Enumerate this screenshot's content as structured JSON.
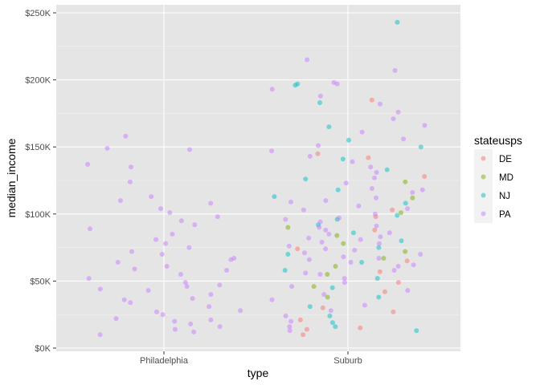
{
  "chart_data": {
    "type": "scatter",
    "jitter": true,
    "xlabel": "type",
    "ylabel": "median_income",
    "categories": [
      "Philadelphia",
      "Suburb"
    ],
    "ylim": [
      0,
      250000
    ],
    "yticks": [
      0,
      50000,
      100000,
      150000,
      200000,
      250000
    ],
    "ytick_labels": [
      "$0K",
      "$50K",
      "$100K",
      "$150K",
      "$200K",
      "$250K"
    ],
    "grid": true,
    "panel_background": "#e5e5e5",
    "grid_color": "#ffffff",
    "point_opacity": 0.5,
    "legend": {
      "title": "stateusps",
      "placement": "right",
      "entries": [
        {
          "label": "DE",
          "color": "#F8766D"
        },
        {
          "label": "MD",
          "color": "#7CAE00"
        },
        {
          "label": "NJ",
          "color": "#00BFC4"
        },
        {
          "label": "PA",
          "color": "#C77CFF"
        }
      ]
    },
    "series": [
      {
        "name": "DE",
        "color": "#F8766D",
        "points": [
          {
            "x": "Suburb",
            "y": 185000
          },
          {
            "x": "Suburb",
            "y": 145000
          },
          {
            "x": "Suburb",
            "y": 142000
          },
          {
            "x": "Suburb",
            "y": 128000
          },
          {
            "x": "Suburb",
            "y": 98000
          },
          {
            "x": "Suburb",
            "y": 88000
          },
          {
            "x": "Suburb",
            "y": 74000
          },
          {
            "x": "Suburb",
            "y": 65000
          },
          {
            "x": "Suburb",
            "y": 57000
          },
          {
            "x": "Suburb",
            "y": 49000
          },
          {
            "x": "Suburb",
            "y": 42000
          },
          {
            "x": "Suburb",
            "y": 30000
          },
          {
            "x": "Suburb",
            "y": 27000
          },
          {
            "x": "Suburb",
            "y": 21000
          },
          {
            "x": "Suburb",
            "y": 15000
          },
          {
            "x": "Suburb",
            "y": 14000
          },
          {
            "x": "Suburb",
            "y": 10000
          },
          {
            "x": "Suburb",
            "y": 103000
          }
        ]
      },
      {
        "name": "MD",
        "color": "#7CAE00",
        "points": [
          {
            "x": "Suburb",
            "y": 124000
          },
          {
            "x": "Suburb",
            "y": 101000
          },
          {
            "x": "Suburb",
            "y": 90000
          },
          {
            "x": "Suburb",
            "y": 78000
          },
          {
            "x": "Suburb",
            "y": 67000
          },
          {
            "x": "Suburb",
            "y": 55000
          },
          {
            "x": "Suburb",
            "y": 46000
          },
          {
            "x": "Suburb",
            "y": 38000
          },
          {
            "x": "Suburb",
            "y": 112000
          },
          {
            "x": "Suburb",
            "y": 72000
          },
          {
            "x": "Suburb",
            "y": 61000
          },
          {
            "x": "Suburb",
            "y": 84000
          }
        ]
      },
      {
        "name": "NJ",
        "color": "#00BFC4",
        "points": [
          {
            "x": "Suburb",
            "y": 243000
          },
          {
            "x": "Suburb",
            "y": 197000
          },
          {
            "x": "Suburb",
            "y": 196000
          },
          {
            "x": "Suburb",
            "y": 183000
          },
          {
            "x": "Suburb",
            "y": 165000
          },
          {
            "x": "Suburb",
            "y": 155000
          },
          {
            "x": "Suburb",
            "y": 150000
          },
          {
            "x": "Suburb",
            "y": 141000
          },
          {
            "x": "Suburb",
            "y": 133000
          },
          {
            "x": "Suburb",
            "y": 126000
          },
          {
            "x": "Suburb",
            "y": 118000
          },
          {
            "x": "Suburb",
            "y": 108000
          },
          {
            "x": "Suburb",
            "y": 99000
          },
          {
            "x": "Suburb",
            "y": 92000
          },
          {
            "x": "Suburb",
            "y": 86000
          },
          {
            "x": "Suburb",
            "y": 80000
          },
          {
            "x": "Suburb",
            "y": 75000
          },
          {
            "x": "Suburb",
            "y": 70000
          },
          {
            "x": "Suburb",
            "y": 64000
          },
          {
            "x": "Suburb",
            "y": 58000
          },
          {
            "x": "Suburb",
            "y": 52000
          },
          {
            "x": "Suburb",
            "y": 45000
          },
          {
            "x": "Suburb",
            "y": 38000
          },
          {
            "x": "Suburb",
            "y": 31000
          },
          {
            "x": "Suburb",
            "y": 24000
          },
          {
            "x": "Suburb",
            "y": 19000
          },
          {
            "x": "Suburb",
            "y": 16000
          },
          {
            "x": "Suburb",
            "y": 13000
          },
          {
            "x": "Suburb",
            "y": 96000
          },
          {
            "x": "Suburb",
            "y": 113000
          }
        ]
      },
      {
        "name": "PA",
        "color": "#C77CFF",
        "points": [
          {
            "x": "Philadelphia",
            "y": 158000
          },
          {
            "x": "Philadelphia",
            "y": 149000
          },
          {
            "x": "Philadelphia",
            "y": 148000
          },
          {
            "x": "Philadelphia",
            "y": 137000
          },
          {
            "x": "Philadelphia",
            "y": 135000
          },
          {
            "x": "Philadelphia",
            "y": 124000
          },
          {
            "x": "Philadelphia",
            "y": 113000
          },
          {
            "x": "Philadelphia",
            "y": 110000
          },
          {
            "x": "Philadelphia",
            "y": 108000
          },
          {
            "x": "Philadelphia",
            "y": 104000
          },
          {
            "x": "Philadelphia",
            "y": 101000
          },
          {
            "x": "Philadelphia",
            "y": 98000
          },
          {
            "x": "Philadelphia",
            "y": 95000
          },
          {
            "x": "Philadelphia",
            "y": 92000
          },
          {
            "x": "Philadelphia",
            "y": 89000
          },
          {
            "x": "Philadelphia",
            "y": 85000
          },
          {
            "x": "Philadelphia",
            "y": 81000
          },
          {
            "x": "Philadelphia",
            "y": 78000
          },
          {
            "x": "Philadelphia",
            "y": 75000
          },
          {
            "x": "Philadelphia",
            "y": 72000
          },
          {
            "x": "Philadelphia",
            "y": 70000
          },
          {
            "x": "Philadelphia",
            "y": 67000
          },
          {
            "x": "Philadelphia",
            "y": 64000
          },
          {
            "x": "Philadelphia",
            "y": 61000
          },
          {
            "x": "Philadelphia",
            "y": 58000
          },
          {
            "x": "Philadelphia",
            "y": 55000
          },
          {
            "x": "Philadelphia",
            "y": 52000
          },
          {
            "x": "Philadelphia",
            "y": 49000
          },
          {
            "x": "Philadelphia",
            "y": 46000
          },
          {
            "x": "Philadelphia",
            "y": 43000
          },
          {
            "x": "Philadelphia",
            "y": 40000
          },
          {
            "x": "Philadelphia",
            "y": 37000
          },
          {
            "x": "Philadelphia",
            "y": 34000
          },
          {
            "x": "Philadelphia",
            "y": 31000
          },
          {
            "x": "Philadelphia",
            "y": 28000
          },
          {
            "x": "Philadelphia",
            "y": 25000
          },
          {
            "x": "Philadelphia",
            "y": 22000
          },
          {
            "x": "Philadelphia",
            "y": 20000
          },
          {
            "x": "Philadelphia",
            "y": 18000
          },
          {
            "x": "Philadelphia",
            "y": 16000
          },
          {
            "x": "Philadelphia",
            "y": 14000
          },
          {
            "x": "Philadelphia",
            "y": 12000
          },
          {
            "x": "Philadelphia",
            "y": 10000
          },
          {
            "x": "Philadelphia",
            "y": 66000
          },
          {
            "x": "Philadelphia",
            "y": 44000
          },
          {
            "x": "Philadelphia",
            "y": 36000
          },
          {
            "x": "Philadelphia",
            "y": 27000
          },
          {
            "x": "Philadelphia",
            "y": 21000
          },
          {
            "x": "Philadelphia",
            "y": 59000
          },
          {
            "x": "Philadelphia",
            "y": 47000
          },
          {
            "x": "Suburb",
            "y": 215000
          },
          {
            "x": "Suburb",
            "y": 207000
          },
          {
            "x": "Suburb",
            "y": 198000
          },
          {
            "x": "Suburb",
            "y": 197000
          },
          {
            "x": "Suburb",
            "y": 193000
          },
          {
            "x": "Suburb",
            "y": 188000
          },
          {
            "x": "Suburb",
            "y": 182000
          },
          {
            "x": "Suburb",
            "y": 176000
          },
          {
            "x": "Suburb",
            "y": 171000
          },
          {
            "x": "Suburb",
            "y": 166000
          },
          {
            "x": "Suburb",
            "y": 161000
          },
          {
            "x": "Suburb",
            "y": 156000
          },
          {
            "x": "Suburb",
            "y": 151000
          },
          {
            "x": "Suburb",
            "y": 147000
          },
          {
            "x": "Suburb",
            "y": 143000
          },
          {
            "x": "Suburb",
            "y": 139000
          },
          {
            "x": "Suburb",
            "y": 135000
          },
          {
            "x": "Suburb",
            "y": 131000
          },
          {
            "x": "Suburb",
            "y": 127000
          },
          {
            "x": "Suburb",
            "y": 123000
          },
          {
            "x": "Suburb",
            "y": 119000
          },
          {
            "x": "Suburb",
            "y": 116000
          },
          {
            "x": "Suburb",
            "y": 112000
          },
          {
            "x": "Suburb",
            "y": 109000
          },
          {
            "x": "Suburb",
            "y": 106000
          },
          {
            "x": "Suburb",
            "y": 103000
          },
          {
            "x": "Suburb",
            "y": 100000
          },
          {
            "x": "Suburb",
            "y": 97000
          },
          {
            "x": "Suburb",
            "y": 94000
          },
          {
            "x": "Suburb",
            "y": 91000
          },
          {
            "x": "Suburb",
            "y": 88000
          },
          {
            "x": "Suburb",
            "y": 85000
          },
          {
            "x": "Suburb",
            "y": 82000
          },
          {
            "x": "Suburb",
            "y": 79000
          },
          {
            "x": "Suburb",
            "y": 76000
          },
          {
            "x": "Suburb",
            "y": 73000
          },
          {
            "x": "Suburb",
            "y": 70000
          },
          {
            "x": "Suburb",
            "y": 67000
          },
          {
            "x": "Suburb",
            "y": 64000
          },
          {
            "x": "Suburb",
            "y": 61000
          },
          {
            "x": "Suburb",
            "y": 58000
          },
          {
            "x": "Suburb",
            "y": 55000
          },
          {
            "x": "Suburb",
            "y": 52000
          },
          {
            "x": "Suburb",
            "y": 49000
          },
          {
            "x": "Suburb",
            "y": 46000
          },
          {
            "x": "Suburb",
            "y": 43000
          },
          {
            "x": "Suburb",
            "y": 40000
          },
          {
            "x": "Suburb",
            "y": 36000
          },
          {
            "x": "Suburb",
            "y": 32000
          },
          {
            "x": "Suburb",
            "y": 28000
          },
          {
            "x": "Suburb",
            "y": 24000
          },
          {
            "x": "Suburb",
            "y": 20000
          },
          {
            "x": "Suburb",
            "y": 16000
          },
          {
            "x": "Suburb",
            "y": 13000
          },
          {
            "x": "Suburb",
            "y": 86000
          },
          {
            "x": "Suburb",
            "y": 83000
          },
          {
            "x": "Suburb",
            "y": 78000
          },
          {
            "x": "Suburb",
            "y": 74000
          },
          {
            "x": "Suburb",
            "y": 71000
          },
          {
            "x": "Suburb",
            "y": 68000
          },
          {
            "x": "Suburb",
            "y": 62000
          },
          {
            "x": "Suburb",
            "y": 90000
          },
          {
            "x": "Suburb",
            "y": 96000
          },
          {
            "x": "Suburb",
            "y": 104000
          },
          {
            "x": "Suburb",
            "y": 110000
          },
          {
            "x": "Suburb",
            "y": 118000
          },
          {
            "x": "Suburb",
            "y": 56000
          },
          {
            "x": "Suburb",
            "y": 66000
          },
          {
            "x": "Suburb",
            "y": 81000
          }
        ]
      }
    ]
  }
}
